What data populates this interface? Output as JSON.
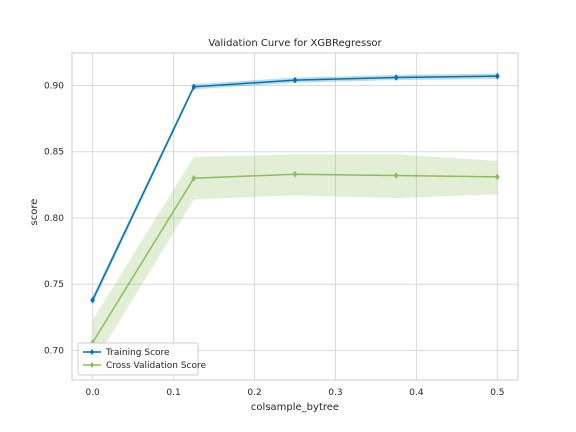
{
  "chart_data": {
    "type": "line",
    "title": "Validation Curve for XGBRegressor",
    "xlabel": "colsample_bytree",
    "ylabel": "score",
    "xlim": [
      -0.0255,
      0.5255
    ],
    "ylim": [
      0.6777,
      0.9245
    ],
    "xticks": [
      0.0,
      0.1,
      0.2,
      0.3,
      0.4,
      0.5
    ],
    "xtick_labels": [
      "0.0",
      "0.1",
      "0.2",
      "0.3",
      "0.4",
      "0.5"
    ],
    "yticks": [
      0.7,
      0.75,
      0.8,
      0.85,
      0.9
    ],
    "ytick_labels": [
      "0.70",
      "0.75",
      "0.80",
      "0.85",
      "0.90"
    ],
    "grid": true,
    "legend_position": "lower-left",
    "x": [
      0.0,
      0.125,
      0.25,
      0.375,
      0.5
    ],
    "series": [
      {
        "name": "Training Score",
        "color": "#0072b2",
        "values": [
          0.738,
          0.899,
          0.904,
          0.906,
          0.907
        ],
        "band_upper": [
          0.741,
          0.901,
          0.906,
          0.908,
          0.909
        ],
        "band_lower": [
          0.735,
          0.897,
          0.902,
          0.904,
          0.905
        ]
      },
      {
        "name": "Cross Validation Score",
        "color": "#8fbc5c",
        "values": [
          0.706,
          0.83,
          0.833,
          0.832,
          0.831
        ],
        "band_upper": [
          0.723,
          0.846,
          0.848,
          0.848,
          0.843
        ],
        "band_lower": [
          0.689,
          0.814,
          0.817,
          0.815,
          0.818
        ]
      }
    ]
  }
}
